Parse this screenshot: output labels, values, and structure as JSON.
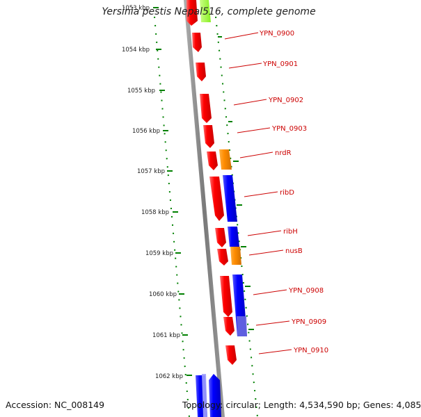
{
  "title": "Yersinia pestis Nepal516, complete genome",
  "accession": "Accession: NC_008149",
  "topology": "Topology: circular; Length: 4,534,590 bp; Genes: 4,085",
  "colors": {
    "forward_gene": "#ff0000",
    "reverse_gene": "#0000ff",
    "rna_gene": "#ff8c00",
    "pale_gene": "#99ff33",
    "scale_ticks": "#008000",
    "label_text": "#cc0000",
    "backbone": "#808080"
  },
  "scale": {
    "unit": "kbp",
    "ticks": [
      "1053 kbp",
      "1054 kbp",
      "1055 kbp",
      "1056 kbp",
      "1057 kbp",
      "1058 kbp",
      "1059 kbp",
      "1060 kbp",
      "1061 kbp",
      "1062 kbp"
    ]
  },
  "gene_labels": [
    "YPN_0900",
    "YPN_0901",
    "YPN_0902",
    "YPN_0903",
    "nrdR",
    "ribD",
    "ribH",
    "nusB",
    "YPN_0908",
    "YPN_0909",
    "YPN_0910"
  ]
}
